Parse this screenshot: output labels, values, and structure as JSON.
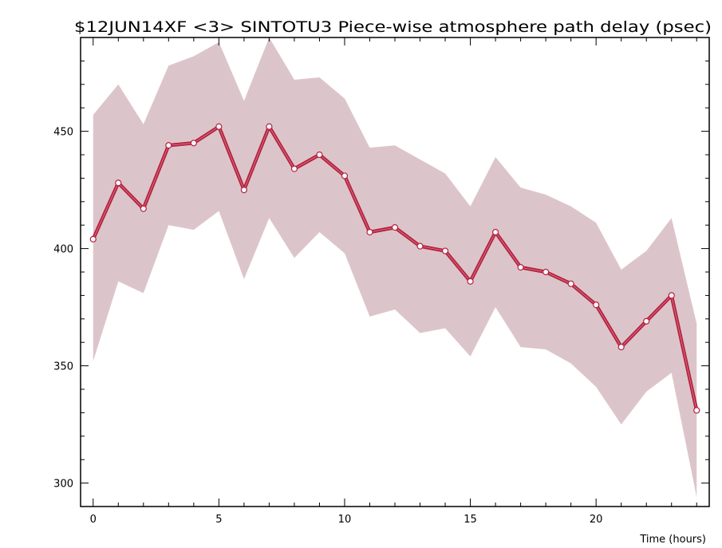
{
  "chart_data": {
    "type": "line",
    "title": "$12JUN14XF <3>  SINTOTU3  Piece-wise atmosphere path delay (psec)",
    "xlabel": "Time (hours)",
    "ylabel": "",
    "xlim": [
      -0.5,
      24.5
    ],
    "ylim": [
      290,
      490
    ],
    "x_ticks": [
      0,
      5,
      10,
      15,
      20
    ],
    "y_ticks": [
      300,
      350,
      400,
      450
    ],
    "grid": false,
    "colors": {
      "line": "#b5213f",
      "band": "#dcc5ca",
      "marker_fill": "#ffffff"
    },
    "x": [
      0,
      1,
      2,
      3,
      4,
      5,
      6,
      7,
      8,
      9,
      10,
      11,
      12,
      13,
      14,
      15,
      16,
      17,
      18,
      19,
      20,
      21,
      22,
      23,
      24
    ],
    "series": [
      {
        "values": [
          404,
          428,
          417,
          444,
          445,
          452,
          425,
          452,
          434,
          440,
          431,
          407,
          409,
          401,
          399,
          386,
          407,
          392,
          390,
          385,
          376,
          358,
          369,
          380,
          331
        ],
        "upper": [
          457,
          470,
          453,
          478,
          482,
          488,
          463,
          490,
          472,
          473,
          464,
          443,
          444,
          438,
          432,
          418,
          439,
          426,
          423,
          418,
          411,
          391,
          399,
          413,
          368
        ],
        "lower": [
          352,
          386,
          381,
          410,
          408,
          416,
          387,
          413,
          396,
          407,
          398,
          371,
          374,
          364,
          366,
          354,
          375,
          358,
          357,
          351,
          341,
          325,
          339,
          347,
          294
        ]
      }
    ]
  }
}
